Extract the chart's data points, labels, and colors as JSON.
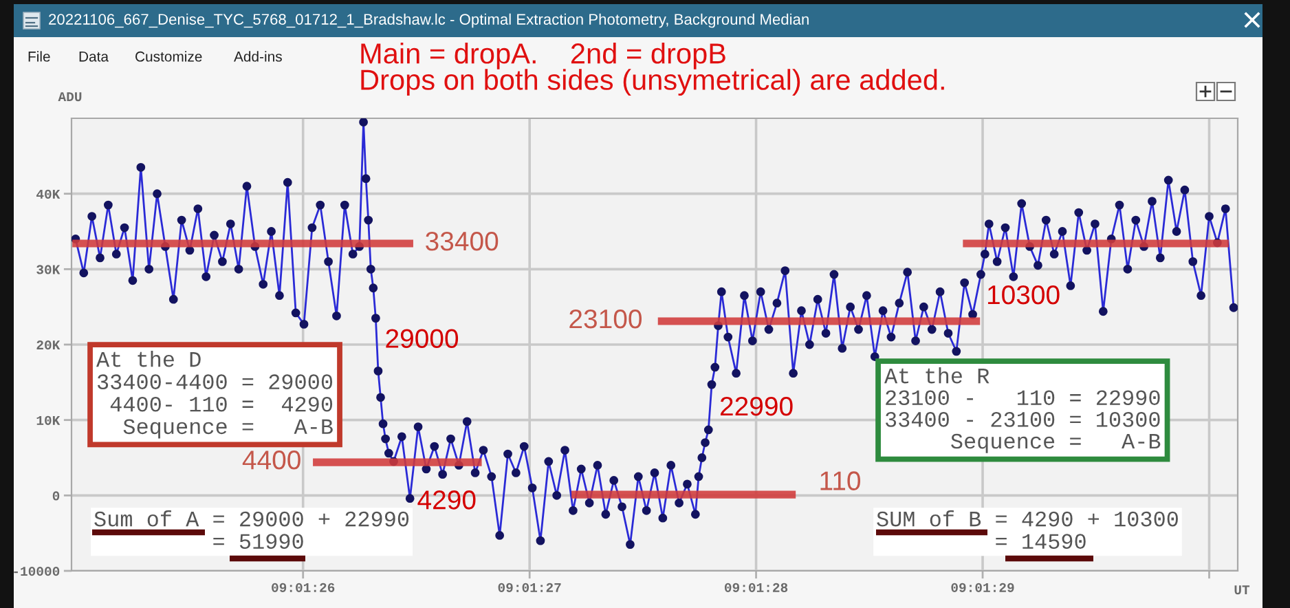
{
  "chart_data": {
    "type": "line",
    "title": "20221106_667_Denise_TYC_5768_01712_1_Bradshaw.lc - Optimal Extraction Photometry, Background Median",
    "subtitle": "Main = dropA.    2nd = dropB\nDrops on both sides (unsymetrical) are added.",
    "xlabel": "UT",
    "ylabel": "ADU",
    "xlim": [
      9.023605,
      9.025035
    ],
    "xticks": [
      {
        "value": 9.0238889,
        "label": "09:01:26"
      },
      {
        "value": 9.0241667,
        "label": "09:01:27"
      },
      {
        "value": 9.0244444,
        "label": "09:01:28"
      },
      {
        "value": 9.0247222,
        "label": "09:01:29"
      },
      {
        "value": 9.025,
        "label": null
      }
    ],
    "ylim": [
      -10000,
      50000
    ],
    "yticks": [
      -10000,
      0,
      {
        "value": 10000,
        "label": "10K"
      },
      {
        "value": 20000,
        "label": "20K"
      },
      {
        "value": 30000,
        "label": "30K"
      },
      {
        "value": 40000,
        "label": "40K"
      }
    ],
    "grid": true,
    "series": [
      {
        "color": "#2a2ad6",
        "marker": "circle",
        "x": [
          9.02361,
          9.02362,
          9.02363,
          9.02364,
          9.02365,
          9.02366,
          9.02367,
          9.02368,
          9.02369,
          9.0237,
          9.02371,
          9.02372,
          9.02373,
          9.02374,
          9.02375,
          9.02376,
          9.02377,
          9.02378,
          9.02379,
          9.0238,
          9.02381,
          9.02382,
          9.02383,
          9.02384,
          9.02385,
          9.02386,
          9.02387,
          9.02388,
          9.02389,
          9.0239,
          9.02391,
          9.02392,
          9.02393,
          9.02394,
          9.02395,
          9.023958,
          9.023963,
          9.023966,
          9.023969,
          9.023972,
          9.023975,
          9.023978,
          9.023981,
          9.023984,
          9.023987,
          9.02399,
          9.023994,
          9.024,
          9.02401,
          9.02402,
          9.02403,
          9.02404,
          9.02405,
          9.02406,
          9.02407,
          9.02408,
          9.02409,
          9.0241,
          9.02411,
          9.02412,
          9.02413,
          9.02414,
          9.02415,
          9.02416,
          9.02417,
          9.02418,
          9.02419,
          9.0242,
          9.02421,
          9.02422,
          9.02423,
          9.02424,
          9.02425,
          9.02426,
          9.02427,
          9.02428,
          9.02429,
          9.0243,
          9.02431,
          9.02432,
          9.02433,
          9.02434,
          9.02435,
          9.02436,
          9.02437,
          9.024374,
          9.024378,
          9.024382,
          9.024386,
          9.02439,
          9.024394,
          9.024398,
          9.024402,
          9.02441,
          9.02442,
          9.02443,
          9.02444,
          9.02445,
          9.02446,
          9.02447,
          9.02448,
          9.02449,
          9.0245,
          9.02451,
          9.02452,
          9.02453,
          9.02454,
          9.02455,
          9.02456,
          9.02457,
          9.02458,
          9.02459,
          9.0246,
          9.02461,
          9.02462,
          9.02463,
          9.02464,
          9.02465,
          9.02466,
          9.02467,
          9.02468,
          9.02469,
          9.0247,
          9.02471,
          9.02472,
          9.024725,
          9.02473,
          9.02474,
          9.02475,
          9.02476,
          9.02477,
          9.02478,
          9.02479,
          9.0248,
          9.02481,
          9.02482,
          9.02483,
          9.02484,
          9.02485,
          9.02486,
          9.02487,
          9.02488,
          9.02489,
          9.0249,
          9.02491,
          9.02492,
          9.02493,
          9.02494,
          9.02495,
          9.02496,
          9.02497,
          9.02498,
          9.02499,
          9.025,
          9.02501,
          9.02502,
          9.02503
        ],
        "values": [
          34000,
          29500,
          37000,
          31500,
          38500,
          32000,
          35500,
          28500,
          43500,
          30000,
          40000,
          33000,
          26000,
          36500,
          32500,
          38000,
          29000,
          34500,
          31000,
          36000,
          30000,
          41000,
          33000,
          28000,
          35000,
          26500,
          41500,
          24200,
          22700,
          35500,
          38500,
          31000,
          23800,
          38500,
          32000,
          33000,
          49500,
          42000,
          36500,
          30000,
          27500,
          23500,
          16500,
          13000,
          9500,
          7500,
          5600,
          4500,
          7800,
          -400,
          9100,
          3500,
          6500,
          2800,
          7500,
          4000,
          9800,
          3000,
          6000,
          2500,
          -5300,
          5500,
          3000,
          6500,
          1000,
          -6000,
          4500,
          0,
          6000,
          -2000,
          3500,
          -1000,
          4000,
          -2500,
          2000,
          -1500,
          -6500,
          2500,
          -2000,
          3000,
          -3000,
          4000,
          -1000,
          1500,
          -2500,
          2500,
          5000,
          7000,
          8700,
          14700,
          17000,
          22500,
          27000,
          21000,
          16200,
          26500,
          20500,
          27000,
          22000,
          25500,
          29800,
          16200,
          24500,
          20000,
          26000,
          21500,
          29300,
          19500,
          25000,
          22000,
          26500,
          18400,
          24500,
          21000,
          25500,
          29600,
          20500,
          25000,
          22000,
          27000,
          21500,
          19100,
          28200,
          24000,
          29300,
          32000,
          36000,
          31000,
          35500,
          29000,
          38700,
          33000,
          30500,
          36500,
          32000,
          35000,
          27800,
          37500,
          32500,
          36000,
          24400,
          34000,
          38500,
          30000,
          36500,
          33000,
          39000,
          31500,
          41800,
          35000,
          40500,
          31000,
          26500,
          37000,
          33500,
          38000,
          24900
        ]
      },
      {
        "color": "#d03a3a",
        "x": [
          9.023606,
          9.024024
        ],
        "values": [
          33400,
          33400
        ]
      },
      {
        "color": "#d03a3a",
        "x": [
          9.023901,
          9.024108
        ],
        "values": [
          4400,
          4400
        ]
      },
      {
        "color": "#d03a3a",
        "x": [
          9.024218,
          9.024493
        ],
        "values": [
          110,
          110
        ]
      },
      {
        "color": "#d03a3a",
        "x": [
          9.024324,
          9.024719
        ],
        "values": [
          23100,
          23100
        ]
      },
      {
        "color": "#d03a3a",
        "x": [
          9.024698,
          9.025024
        ],
        "values": [
          33400,
          33400
        ]
      }
    ],
    "annotations": [
      "File",
      "Data",
      "Customize",
      "Add-ins",
      {
        "text": "33400",
        "x": 9.024024,
        "y": 33400
      },
      {
        "text": "4400",
        "x": 9.023901,
        "y": 4400
      },
      {
        "text": "110",
        "x": 9.024493,
        "y": 110
      },
      {
        "text": "23100",
        "x": 9.024324,
        "y": 23100
      },
      {
        "text": "29000",
        "x": 9.023982,
        "y": 20500
      },
      {
        "text": "4290",
        "x": 9.024024,
        "y": -900
      },
      "22990",
      "10300",
      "At the D\n33400-4400 = 29000\n 4400- 110 =  4290\n  Sequence =   A-B",
      "At the R\n23100 -   110 = 22990\n33400 - 23100 = 10300\n     Sequence =   A-B",
      "Sum of A = 29000 + 22990\n         = 51990",
      "SUM of B = 4290 + 10300\n         = 14590"
    ]
  }
}
